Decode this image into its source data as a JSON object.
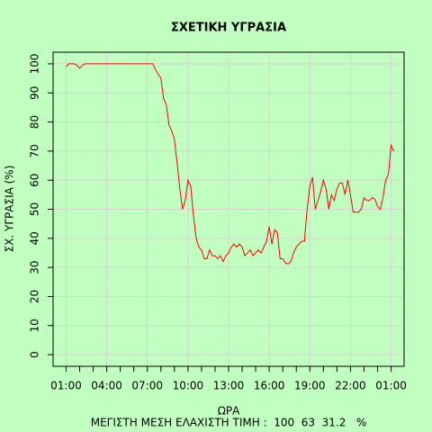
{
  "chart_data": {
    "type": "line",
    "title": "ΣΧΕΤΙΚΗ ΥΓΡΑΣΙΑ",
    "xlabel": "ΩΡΑ",
    "ylabel": "ΣΧ. ΥΓΡΑΣΙΑ (%)",
    "footer": "ΜΕΓΙΣΤΗ ΜΕΣΗ ΕΛΑΧΙΣΤΗ ΤΙΜΗ :  100  63  31.2   %",
    "color": "#ff0000",
    "grid": true,
    "xlim": [
      0.04,
      25.96
    ],
    "ylim": [
      -4,
      104
    ],
    "xticks": [
      {
        "value": 1,
        "label": "01:00"
      },
      {
        "value": 4,
        "label": "04:00"
      },
      {
        "value": 7,
        "label": "07:00"
      },
      {
        "value": 10,
        "label": "10:00"
      },
      {
        "value": 13,
        "label": "13:00"
      },
      {
        "value": 16,
        "label": "16:00"
      },
      {
        "value": 19,
        "label": "19:00"
      },
      {
        "value": 22,
        "label": "22:00"
      },
      {
        "value": 25,
        "label": "01:00"
      }
    ],
    "xminorticks": [
      2,
      3,
      5,
      6,
      8,
      9,
      11,
      12,
      14,
      15,
      17,
      18,
      20,
      21,
      23,
      24
    ],
    "yticks": [
      0,
      10,
      20,
      30,
      40,
      50,
      60,
      70,
      80,
      90,
      100
    ],
    "x": [
      1,
      1.2,
      1.4,
      1.6,
      1.8,
      2,
      2.2,
      2.4,
      2.6,
      2.8,
      3,
      3.2,
      3.4,
      3.6,
      3.8,
      4,
      4.2,
      4.4,
      4.6,
      4.8,
      5,
      5.2,
      5.4,
      5.6,
      5.8,
      6,
      6.2,
      6.4,
      6.6,
      6.8,
      7,
      7.2,
      7.4,
      7.6,
      7.8,
      8,
      8.2,
      8.4,
      8.6,
      8.8,
      9,
      9.2,
      9.4,
      9.6,
      9.8,
      10,
      10.2,
      10.4,
      10.6,
      10.8,
      11,
      11.2,
      11.4,
      11.6,
      11.8,
      12,
      12.2,
      12.4,
      12.6,
      12.8,
      13,
      13.2,
      13.4,
      13.6,
      13.8,
      14,
      14.2,
      14.4,
      14.6,
      14.8,
      15,
      15.2,
      15.4,
      15.6,
      15.8,
      16,
      16.2,
      16.4,
      16.6,
      16.8,
      17,
      17.2,
      17.4,
      17.6,
      17.8,
      18,
      18.2,
      18.4,
      18.6,
      18.8,
      19,
      19.2,
      19.4,
      19.6,
      19.8,
      20,
      20.2,
      20.4,
      20.6,
      20.8,
      21,
      21.2,
      21.4,
      21.6,
      21.8,
      22,
      22.2,
      22.4,
      22.6,
      22.8,
      23,
      23.2,
      23.4,
      23.6,
      23.8,
      24,
      24.2,
      24.4,
      24.6,
      24.8,
      25,
      25.2
    ],
    "values": [
      99,
      100,
      100,
      100,
      99.5,
      98.5,
      99.5,
      100,
      100,
      100,
      100,
      100,
      100,
      100,
      100,
      100,
      100,
      100,
      100,
      100,
      100,
      100,
      100,
      100,
      100,
      100,
      100,
      100,
      100,
      100,
      100,
      100,
      100,
      98,
      96.5,
      95,
      88,
      86,
      79,
      77,
      74,
      66,
      57,
      50,
      53,
      60,
      58,
      48,
      40,
      37,
      36,
      33,
      33,
      36,
      34,
      34,
      33,
      34,
      32,
      34,
      35,
      37,
      38,
      37,
      38,
      37,
      34,
      35,
      36,
      34,
      35,
      36,
      35,
      37,
      39,
      44,
      38,
      43,
      42,
      33,
      33,
      31.5,
      31.2,
      32,
      35,
      37,
      38,
      39,
      39,
      50,
      58,
      61,
      50,
      53,
      56,
      60,
      57,
      50,
      55,
      53,
      57,
      59,
      59,
      55,
      60,
      55,
      49,
      49,
      49,
      50,
      54,
      53,
      53,
      54,
      53.5,
      51,
      50,
      54,
      60,
      62,
      72,
      70
    ]
  }
}
